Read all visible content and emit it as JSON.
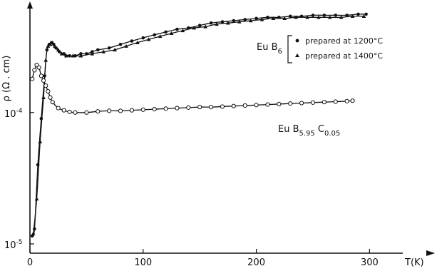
{
  "chart_data": {
    "type": "line",
    "xlabel": "T(K)",
    "ylabel": "ρ (Ω . cm)",
    "xlim": [
      0,
      330
    ],
    "ylog": true,
    "ylim": [
      8.5e-06,
      0.00065
    ],
    "x_ticks": [
      0,
      100,
      200,
      300
    ],
    "x_tick_labels": [
      "0",
      "100",
      "200",
      "300"
    ],
    "y_ticks": [
      1e-05,
      0.0001
    ],
    "y_tick_labels": {
      "t1": {
        "base": "10",
        "exp": "-5"
      },
      "t2": {
        "base": "10",
        "exp": "-4"
      }
    },
    "legend": {
      "compound_base": "Eu B",
      "compound_sub": "6",
      "entries": [
        "prepared at 1200°C",
        "prepared at 1400°C"
      ]
    },
    "series": [
      {
        "name": "prepared at 1200°C",
        "marker": "filled-circle",
        "x": [
          2,
          4,
          7,
          10,
          13,
          15,
          17,
          19,
          21,
          23,
          26,
          30,
          35,
          40,
          45,
          50,
          55,
          60,
          70,
          80,
          90,
          100,
          110,
          120,
          130,
          140,
          150,
          160,
          170,
          180,
          190,
          200,
          210,
          220,
          230,
          240,
          250,
          260,
          270,
          280,
          290,
          297
        ],
        "y": [
          1.15e-05,
          1.3e-05,
          4e-05,
          9e-05,
          0.00019,
          0.0003,
          0.00033,
          0.00034,
          0.00033,
          0.00031,
          0.00029,
          0.00028,
          0.00027,
          0.00027,
          0.00028,
          0.00028,
          0.00029,
          0.0003,
          0.00031,
          0.00033,
          0.00035,
          0.00037,
          0.00039,
          0.00041,
          0.00043,
          0.00044,
          0.00046,
          0.00048,
          0.00049,
          0.0005,
          0.00051,
          0.00052,
          0.00053,
          0.00053,
          0.00054,
          0.00054,
          0.00055,
          0.00055,
          0.00055,
          0.00055,
          0.00056,
          0.00056
        ]
      },
      {
        "name": "prepared at 1400°C",
        "marker": "filled-triangle",
        "x": [
          3,
          6,
          9,
          12,
          14,
          16,
          18,
          20,
          22,
          25,
          28,
          32,
          38,
          45,
          55,
          65,
          75,
          85,
          95,
          105,
          115,
          125,
          135,
          145,
          155,
          165,
          175,
          185,
          195,
          205,
          215,
          225,
          235,
          245,
          255,
          265,
          275,
          285,
          295
        ],
        "y": [
          1.2e-05,
          2.2e-05,
          6e-05,
          0.00013,
          0.00025,
          0.00032,
          0.00033,
          0.00034,
          0.00032,
          0.0003,
          0.00028,
          0.00027,
          0.00027,
          0.00027,
          0.00028,
          0.00029,
          0.0003,
          0.00032,
          0.00034,
          0.00036,
          0.00038,
          0.0004,
          0.00042,
          0.00044,
          0.00045,
          0.00047,
          0.00048,
          0.00049,
          0.0005,
          0.00051,
          0.00052,
          0.00052,
          0.00053,
          0.00053,
          0.00053,
          0.00053,
          0.00053,
          0.00054,
          0.00054
        ]
      },
      {
        "name": "Eu B 5.95 C 0.05",
        "label": {
          "base": "Eu B",
          "sub1": "5.95",
          "mid": " C",
          "sub2": "0.05"
        },
        "marker": "open-circle",
        "x": [
          2,
          4,
          6,
          8,
          10,
          12,
          14,
          16,
          18,
          20,
          25,
          30,
          35,
          40,
          50,
          60,
          70,
          80,
          90,
          100,
          110,
          120,
          130,
          140,
          150,
          160,
          170,
          180,
          190,
          200,
          210,
          220,
          230,
          240,
          250,
          260,
          270,
          280,
          285
        ],
        "y": [
          0.00018,
          0.00021,
          0.00023,
          0.00022,
          0.00019,
          0.000175,
          0.00016,
          0.000145,
          0.00013,
          0.00012,
          0.000108,
          0.000104,
          0.000101,
          0.0001,
          0.0001,
          0.000102,
          0.000103,
          0.000103,
          0.000104,
          0.000105,
          0.000106,
          0.000107,
          0.000108,
          0.000109,
          0.00011,
          0.00011,
          0.000111,
          0.000112,
          0.000113,
          0.000114,
          0.000115,
          0.000116,
          0.000117,
          0.000118,
          0.000119,
          0.00012,
          0.000121,
          0.000122,
          0.000123
        ]
      }
    ]
  }
}
